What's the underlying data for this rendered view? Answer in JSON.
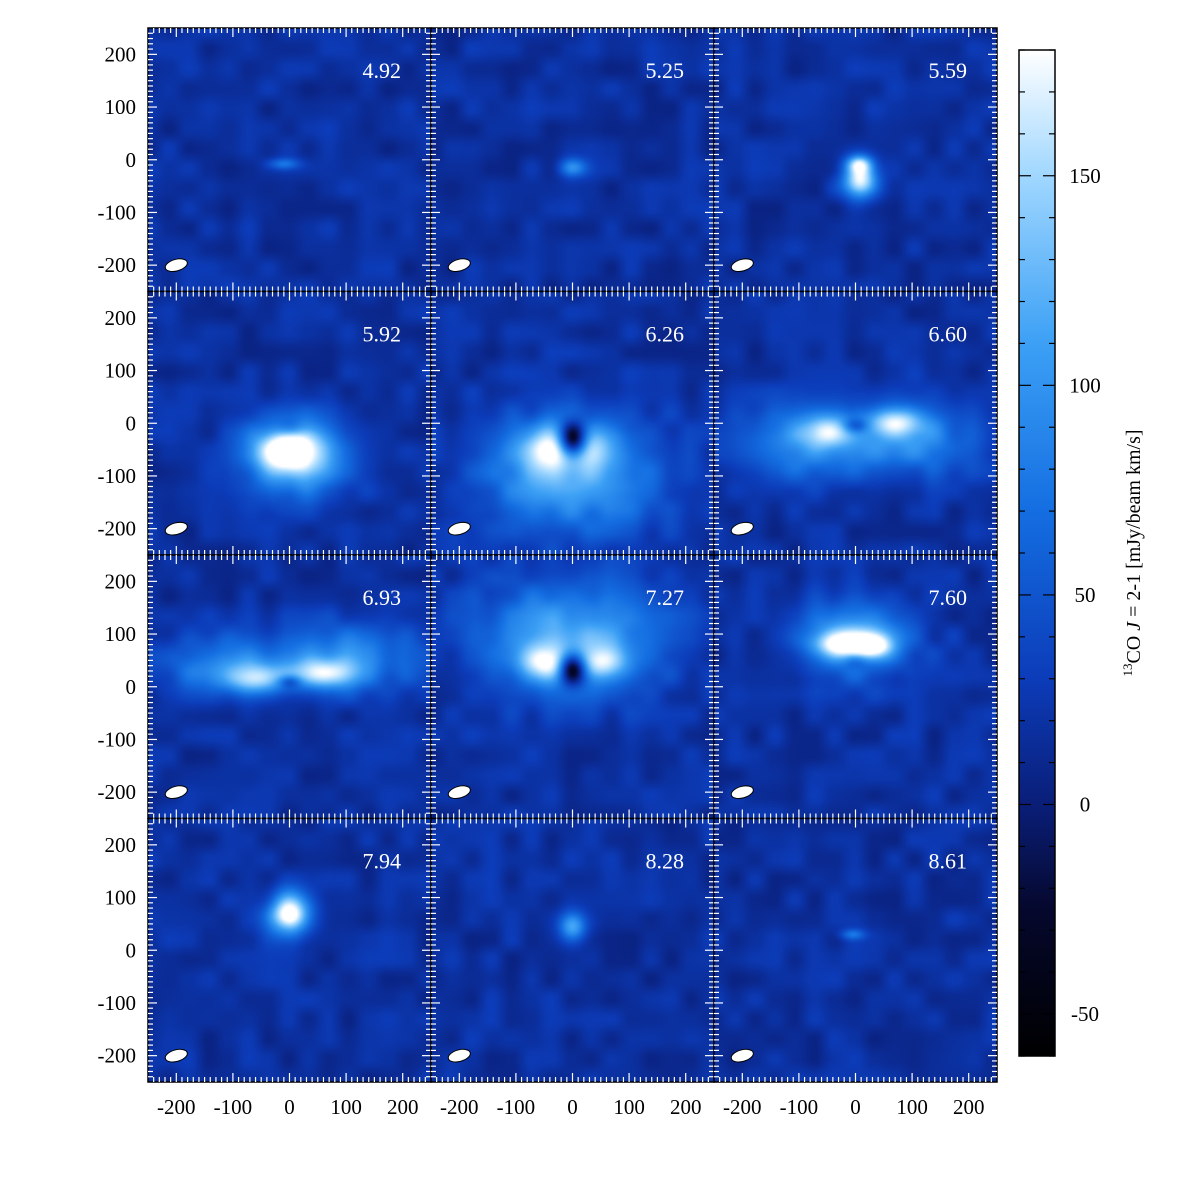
{
  "chart_data": {
    "type": "heatmap",
    "grid": {
      "rows": 4,
      "cols": 3
    },
    "x_ticks": [
      -200,
      -100,
      0,
      100,
      200
    ],
    "y_ticks": [
      200,
      100,
      0,
      -100,
      -200
    ],
    "x_range": [
      -250,
      250
    ],
    "y_range": [
      -250,
      250
    ],
    "panels": [
      {
        "label": "4.92",
        "blobs": [
          {
            "x": -10,
            "y": -8,
            "rx": 28,
            "ry": 11,
            "amp": 55
          }
        ]
      },
      {
        "label": "5.25",
        "blobs": [
          {
            "x": 0,
            "y": -15,
            "rx": 24,
            "ry": 18,
            "amp": 80
          }
        ]
      },
      {
        "label": "5.59",
        "blobs": [
          {
            "x": 8,
            "y": -35,
            "rx": 30,
            "ry": 36,
            "amp": 160
          },
          {
            "x": 6,
            "y": -8,
            "rx": 22,
            "ry": 16,
            "amp": 90
          }
        ]
      },
      {
        "label": "5.92",
        "blobs": [
          {
            "x": 8,
            "y": -65,
            "rx": 90,
            "ry": 75,
            "amp": 120
          },
          {
            "x": 0,
            "y": -50,
            "rx": 55,
            "ry": 40,
            "amp": 120
          },
          {
            "x": 0,
            "y": -10,
            "rx": 25,
            "ry": 18,
            "amp": -40
          }
        ]
      },
      {
        "label": "6.26",
        "blobs": [
          {
            "x": 0,
            "y": -95,
            "rx": 160,
            "ry": 110,
            "amp": 105
          },
          {
            "x": -40,
            "y": -45,
            "rx": 50,
            "ry": 45,
            "amp": 90
          },
          {
            "x": 40,
            "y": -45,
            "rx": 45,
            "ry": 40,
            "amp": 50
          },
          {
            "x": 0,
            "y": -30,
            "rx": 24,
            "ry": 32,
            "amp": -180
          }
        ]
      },
      {
        "label": "6.60",
        "blobs": [
          {
            "x": -100,
            "y": -40,
            "rx": 120,
            "ry": 70,
            "amp": 75
          },
          {
            "x": 100,
            "y": -30,
            "rx": 120,
            "ry": 70,
            "amp": 75
          },
          {
            "x": -50,
            "y": -15,
            "rx": 45,
            "ry": 30,
            "amp": 90
          },
          {
            "x": 70,
            "y": 5,
            "rx": 50,
            "ry": 28,
            "amp": 100
          },
          {
            "x": 0,
            "y": -5,
            "rx": 22,
            "ry": 14,
            "amp": -60
          }
        ]
      },
      {
        "label": "6.93",
        "blobs": [
          {
            "x": -110,
            "y": 40,
            "rx": 120,
            "ry": 55,
            "amp": 75
          },
          {
            "x": 110,
            "y": 55,
            "rx": 120,
            "ry": 65,
            "amp": 75
          },
          {
            "x": -60,
            "y": 15,
            "rx": 55,
            "ry": 28,
            "amp": 95
          },
          {
            "x": 60,
            "y": 25,
            "rx": 55,
            "ry": 28,
            "amp": 100
          },
          {
            "x": 0,
            "y": 10,
            "rx": 20,
            "ry": 12,
            "amp": -60
          }
        ]
      },
      {
        "label": "7.27",
        "blobs": [
          {
            "x": 0,
            "y": 95,
            "rx": 165,
            "ry": 110,
            "amp": 100
          },
          {
            "x": -45,
            "y": 45,
            "rx": 50,
            "ry": 35,
            "amp": 100
          },
          {
            "x": 50,
            "y": 45,
            "rx": 50,
            "ry": 35,
            "amp": 90
          },
          {
            "x": 0,
            "y": 35,
            "rx": 24,
            "ry": 30,
            "amp": -190
          }
        ]
      },
      {
        "label": "7.60",
        "blobs": [
          {
            "x": 0,
            "y": 90,
            "rx": 95,
            "ry": 70,
            "amp": 110
          },
          {
            "x": -15,
            "y": 80,
            "rx": 55,
            "ry": 24,
            "amp": 110
          },
          {
            "x": 35,
            "y": 75,
            "rx": 30,
            "ry": 22,
            "amp": 80
          },
          {
            "x": 0,
            "y": 50,
            "rx": 22,
            "ry": 18,
            "amp": -50
          }
        ]
      },
      {
        "label": "7.94",
        "blobs": [
          {
            "x": 0,
            "y": 70,
            "rx": 38,
            "ry": 42,
            "amp": 160
          },
          {
            "x": 0,
            "y": 65,
            "rx": 20,
            "ry": 20,
            "amp": 40
          }
        ]
      },
      {
        "label": "8.28",
        "blobs": [
          {
            "x": 0,
            "y": 45,
            "rx": 24,
            "ry": 28,
            "amp": 95
          }
        ]
      },
      {
        "label": "8.61",
        "blobs": [
          {
            "x": -5,
            "y": 30,
            "rx": 22,
            "ry": 10,
            "amp": 50
          }
        ]
      }
    ],
    "colorbar": {
      "label_parts": [
        "13",
        "CO ",
        "J",
        " = 2-1 [mJy/beam km/s]"
      ],
      "min": -60,
      "max": 180,
      "ticks": [
        -50,
        0,
        50,
        100,
        150
      ]
    },
    "beam": {
      "x": -200,
      "y": -200,
      "rx": 20,
      "ry": 11,
      "angle": -15
    }
  }
}
